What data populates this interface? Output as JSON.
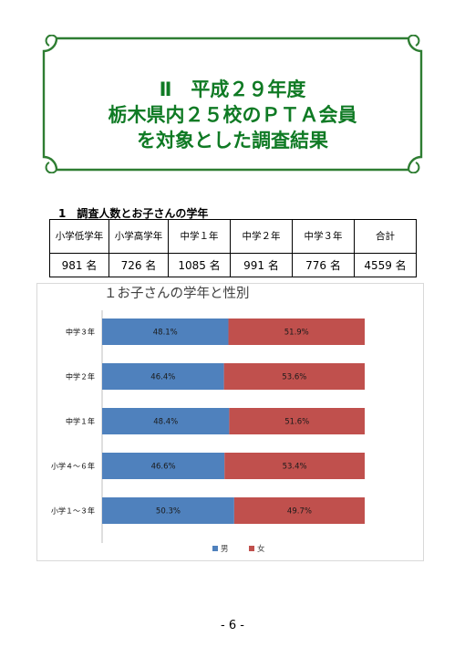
{
  "title": {
    "line1": "Ⅱ　平成２９年度",
    "line2": "栃木県内２５校のＰＴＡ会員",
    "line3": "を対象とした調査結果"
  },
  "section_heading": "1　調査人数とお子さんの学年",
  "table": {
    "headers": [
      "小学低学年",
      "小学高学年",
      "中学１年",
      "中学２年",
      "中学３年",
      "合計"
    ],
    "values": [
      "981 名",
      "726 名",
      "1085 名",
      "991 名",
      "776 名",
      "4559 名"
    ]
  },
  "chart_data": {
    "type": "bar",
    "orientation": "horizontal",
    "stacked": "100%",
    "title": "１お子さんの学年と性別",
    "categories": [
      "中学３年",
      "中学２年",
      "中学１年",
      "小学４～６年",
      "小学１～３年"
    ],
    "series": [
      {
        "name": "男",
        "color": "#4f81bd",
        "values": [
          48.1,
          46.4,
          48.4,
          46.6,
          50.3
        ],
        "labels": [
          "48.1%",
          "46.4%",
          "48.4%",
          "46.6%",
          "50.3%"
        ]
      },
      {
        "name": "女",
        "color": "#c0504d",
        "values": [
          51.9,
          53.6,
          51.6,
          53.4,
          49.7
        ],
        "labels": [
          "51.9%",
          "53.6%",
          "51.6%",
          "53.4%",
          "49.7%"
        ]
      }
    ],
    "legend": "bottom"
  },
  "page_number": "- 6 -"
}
